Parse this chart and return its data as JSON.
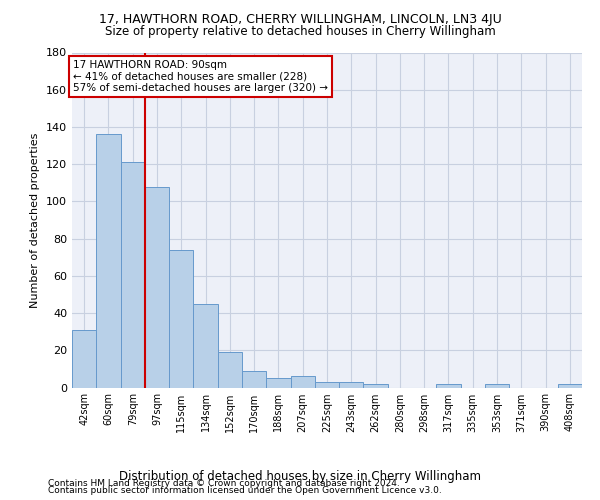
{
  "title": "17, HAWTHORN ROAD, CHERRY WILLINGHAM, LINCOLN, LN3 4JU",
  "subtitle": "Size of property relative to detached houses in Cherry Willingham",
  "xlabel_bottom": "Distribution of detached houses by size in Cherry Willingham",
  "ylabel": "Number of detached properties",
  "footnote1": "Contains HM Land Registry data © Crown copyright and database right 2024.",
  "footnote2": "Contains public sector information licensed under the Open Government Licence v3.0.",
  "categories": [
    "42sqm",
    "60sqm",
    "79sqm",
    "97sqm",
    "115sqm",
    "134sqm",
    "152sqm",
    "170sqm",
    "188sqm",
    "207sqm",
    "225sqm",
    "243sqm",
    "262sqm",
    "280sqm",
    "298sqm",
    "317sqm",
    "335sqm",
    "353sqm",
    "371sqm",
    "390sqm",
    "408sqm"
  ],
  "values": [
    31,
    136,
    121,
    108,
    74,
    45,
    19,
    9,
    5,
    6,
    3,
    3,
    2,
    0,
    0,
    2,
    0,
    2,
    0,
    0,
    2
  ],
  "bar_color": "#b8d0e8",
  "bar_edge_color": "#6699cc",
  "grid_color": "#c8d0e0",
  "background_color": "#edf0f8",
  "vline_x": 2.5,
  "vline_color": "#cc0000",
  "annotation_line1": "17 HAWTHORN ROAD: 90sqm",
  "annotation_line2": "← 41% of detached houses are smaller (228)",
  "annotation_line3": "57% of semi-detached houses are larger (320) →",
  "annotation_box_color": "#cc0000",
  "ylim": [
    0,
    180
  ],
  "yticks": [
    0,
    20,
    40,
    60,
    80,
    100,
    120,
    140,
    160,
    180
  ],
  "title_fontsize": 9,
  "subtitle_fontsize": 8.5
}
